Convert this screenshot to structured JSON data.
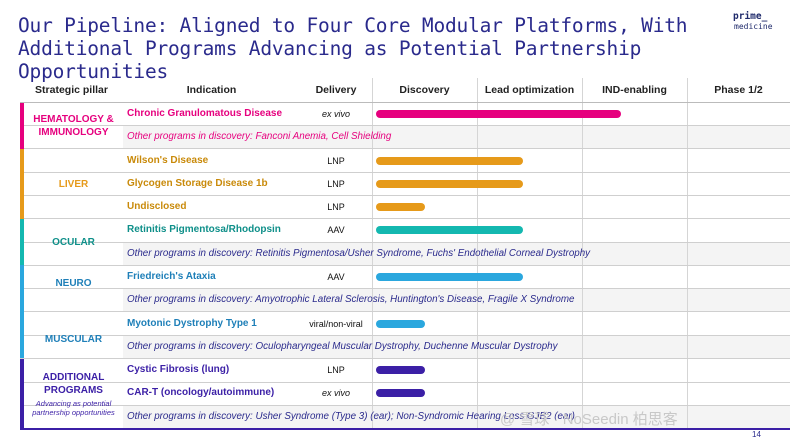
{
  "title": {
    "line1": "Our Pipeline: Aligned to Four Core Modular Platforms, With",
    "line2": "Additional Programs Advancing as Potential Partnership Opportunities"
  },
  "logo": {
    "line1": "prime_",
    "line2": "medicine"
  },
  "headers": {
    "pillar": "Strategic pillar",
    "indication": "Indication",
    "delivery": "Delivery",
    "discovery": "Discovery",
    "lead": "Lead optimization",
    "ind": "IND-enabling",
    "phase": "Phase 1/2"
  },
  "pillars": {
    "hem": {
      "label": "HEMATOLOGY & IMMUNOLOGY",
      "color": "#e6007e"
    },
    "liver": {
      "label": "LIVER",
      "color": "#e69a1a"
    },
    "ocular": {
      "label": "OCULAR",
      "color": "#14b8b0"
    },
    "neuro": {
      "label": "NEURO",
      "color": "#2aa7de"
    },
    "muscular": {
      "label": "MUSCULAR",
      "color": "#2aa7de"
    },
    "additional": {
      "label": "ADDITIONAL PROGRAMS",
      "sub": "Advancing as potential partnership opportunities",
      "color": "#3b1fa6"
    }
  },
  "programs": {
    "cgd": {
      "indication": "Chronic Granulomatous Disease",
      "delivery": "ex vivo",
      "progress": 0.6
    },
    "hem_other": "Other programs in discovery: Fanconi Anemia, Cell Shielding",
    "wilson": {
      "indication": "Wilson's Disease",
      "delivery": "LNP",
      "progress": 0.36
    },
    "gsd": {
      "indication": "Glycogen Storage Disease 1b",
      "delivery": "LNP",
      "progress": 0.36
    },
    "undisclosed": {
      "indication": "Undisclosed",
      "delivery": "LNP",
      "progress": 0.12
    },
    "rp": {
      "indication": "Retinitis Pigmentosa/Rhodopsin",
      "delivery": "AAV",
      "progress": 0.36
    },
    "ocular_other": "Other programs in discovery: Retinitis Pigmentosa/Usher Syndrome, Fuchs' Endothelial Corneal Dystrophy",
    "fa": {
      "indication": "Friedreich's Ataxia",
      "delivery": "AAV",
      "progress": 0.36
    },
    "neuro_other": "Other programs in discovery: Amyotrophic Lateral Sclerosis, Huntington's Disease, Fragile X Syndrome",
    "dm1": {
      "indication": "Myotonic Dystrophy Type 1",
      "delivery": "viral/non-viral",
      "progress": 0.12
    },
    "muscular_other": "Other programs in discovery: Oculopharyngeal Muscular Dystrophy, Duchenne Muscular Dystrophy",
    "cf": {
      "indication": "Cystic Fibrosis (lung)",
      "delivery": "LNP",
      "progress": 0.12
    },
    "cart": {
      "indication": "CAR-T (oncology/autoimmune)",
      "delivery": "ex vivo",
      "progress": 0.12
    },
    "add_other": "Other programs in discovery: Usher Syndrome (Type 3) (ear); Non-Syndromic Hearing Loss GJB2 (ear)"
  },
  "page_number": "14",
  "watermark": "@ 雪球 · NoSeedin 柏思客",
  "colors": {
    "title": "#2a2a8c",
    "indication": "#b8860b",
    "other": "#2a2a8c",
    "hem": "#e6007e",
    "liver": "#e69a1a",
    "ocular": "#14b8b0",
    "neuro": "#2aa7de",
    "additional": "#3b1fa6"
  }
}
